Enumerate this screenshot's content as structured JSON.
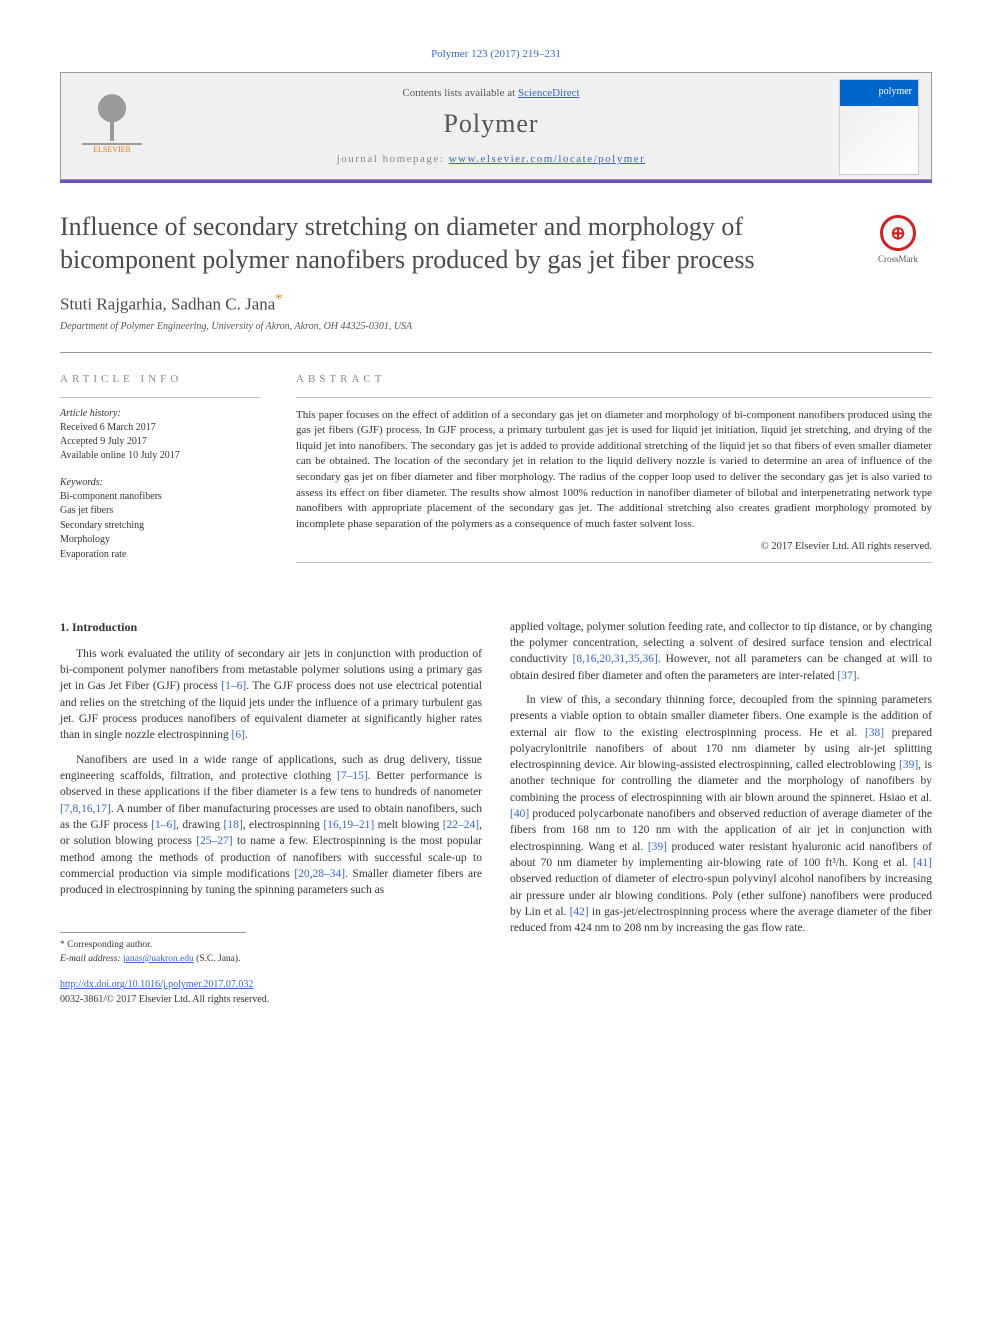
{
  "citation": "Polymer 123 (2017) 219–231",
  "header": {
    "contents_prefix": "Contents lists available at ",
    "contents_link": "ScienceDirect",
    "journal_name": "Polymer",
    "homepage_prefix": "journal homepage: ",
    "homepage_url": "www.elsevier.com/locate/polymer",
    "publisher_logo_label": "ELSEVIER",
    "thumb_label": "polymer"
  },
  "article": {
    "title": "Influence of secondary stretching on diameter and morphology of bicomponent polymer nanofibers produced by gas jet fiber process",
    "crossmark_label": "CrossMark",
    "authors": "Stuti Rajgarhia, Sadhan C. Jana",
    "corr_symbol": "*",
    "affiliation": "Department of Polymer Engineering, University of Akron, Akron, OH 44325-0301, USA"
  },
  "info": {
    "heading": "ARTICLE INFO",
    "history_label": "Article history:",
    "history": [
      "Received 6 March 2017",
      "Accepted 9 July 2017",
      "Available online 10 July 2017"
    ],
    "keywords_label": "Keywords:",
    "keywords": [
      "Bi-component nanofibers",
      "Gas jet fibers",
      "Secondary stretching",
      "Morphology",
      "Evaporation rate"
    ]
  },
  "abstract": {
    "heading": "ABSTRACT",
    "text": "This paper focuses on the effect of addition of a secondary gas jet on diameter and morphology of bi-component nanofibers produced using the gas jet fibers (GJF) process. In GJF process, a primary turbulent gas jet is used for liquid jet initiation, liquid jet stretching, and drying of the liquid jet into nanofibers. The secondary gas jet is added to provide additional stretching of the liquid jet so that fibers of even smaller diameter can be obtained. The location of the secondary jet in relation to the liquid delivery nozzle is varied to determine an area of influence of the secondary gas jet on fiber diameter and fiber morphology. The radius of the copper loop used to deliver the secondary gas jet is also varied to assess its effect on fiber diameter. The results show almost 100% reduction in nanofiber diameter of bilobal and interpenetrating network type nanofibers with appropriate placement of the secondary gas jet. The additional stretching also creates gradient morphology promoted by incomplete phase separation of the polymers as a consequence of much faster solvent loss.",
    "copyright": "© 2017 Elsevier Ltd. All rights reserved."
  },
  "body": {
    "section_heading": "1. Introduction",
    "left_paragraphs": [
      "This work evaluated the utility of secondary air jets in conjunction with production of bi-component polymer nanofibers from metastable polymer solutions using a primary gas jet in Gas Jet Fiber (GJF) process [1–6]. The GJF process does not use electrical potential and relies on the stretching of the liquid jets under the influence of a primary turbulent gas jet. GJF process produces nanofibers of equivalent diameter at significantly higher rates than in single nozzle electrospinning [6].",
      "Nanofibers are used in a wide range of applications, such as drug delivery, tissue engineering scaffolds, filtration, and protective clothing [7–15]. Better performance is observed in these applications if the fiber diameter is a few tens to hundreds of nanometer [7,8,16,17]. A number of fiber manufacturing processes are used to obtain nanofibers, such as the GJF process [1–6], drawing [18], electrospinning [16,19–21] melt blowing [22–24], or solution blowing process [25–27] to name a few. Electrospinning is the most popular method among the methods of production of nanofibers with successful scale-up to commercial production via simple modifications [20,28–34]. Smaller diameter fibers are produced in electrospinning by tuning the spinning parameters such as"
    ],
    "right_paragraphs": [
      "applied voltage, polymer solution feeding rate, and collector to tip distance, or by changing the polymer concentration, selecting a solvent of desired surface tension and electrical conductivity [8,16,20,31,35,36]. However, not all parameters can be changed at will to obtain desired fiber diameter and often the parameters are inter-related [37].",
      "In view of this, a secondary thinning force, decoupled from the spinning parameters presents a viable option to obtain smaller diameter fibers. One example is the addition of external air flow to the existing electrospinning process. He et al. [38] prepared polyacrylonitrile nanofibers of about 170 nm diameter by using air-jet splitting electrospinning device. Air blowing-assisted electrospinning, called electroblowing [39], is another technique for controlling the diameter and the morphology of nanofibers by combining the process of electrospinning with air blown around the spinneret. Hsiao et al. [40] produced polycarbonate nanofibers and observed reduction of average diameter of the fibers from 168 nm to 120 nm with the application of air jet in conjunction with electrospinning. Wang et al. [39] produced water resistant hyaluronic acid nanofibers of about 70 nm diameter by implementing air-blowing rate of 100 ft³/h. Kong et al. [41] observed reduction of diameter of electro-spun polyvinyl alcohol nanofibers by increasing air pressure under air blowing conditions. Poly (ether sulfone) nanofibers were produced by Lin et al. [42] in gas-jet/electrospinning process where the average diameter of the fiber reduced from 424 nm to 208 nm by increasing the gas flow rate."
    ]
  },
  "footnotes": {
    "corr_label": "* Corresponding author.",
    "email_label": "E-mail address:",
    "email": "janas@uakron.edu",
    "email_owner": "(S.C. Jana)."
  },
  "doi": {
    "url": "http://dx.doi.org/10.1016/j.polymer.2017.07.032",
    "issn_line": "0032-3861/© 2017 Elsevier Ltd. All rights reserved."
  },
  "colors": {
    "link": "#3366cc",
    "accent": "#6a4fbf",
    "orange": "#e67817"
  }
}
